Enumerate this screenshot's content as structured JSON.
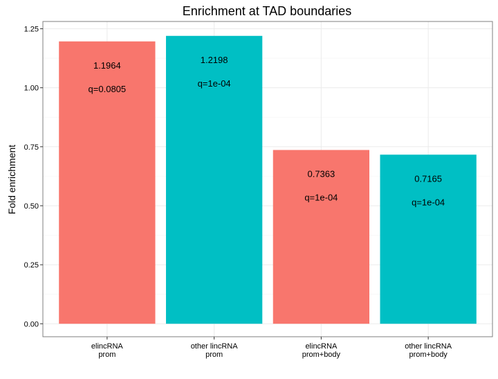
{
  "chart_data": {
    "type": "bar",
    "title": "Enrichment at TAD boundaries",
    "xlabel": "",
    "ylabel": "Fold enrichment",
    "ylim": [
      -0.055,
      1.2808
    ],
    "yticks": [
      "0.00",
      "0.25",
      "0.50",
      "0.75",
      "1.00",
      "1.25"
    ],
    "ytick_values": [
      0,
      0.25,
      0.5,
      0.75,
      1.0,
      1.25
    ],
    "grid": true,
    "legend": "none",
    "categories": [
      [
        "elincRNA",
        "prom"
      ],
      [
        "other lincRNA",
        "prom"
      ],
      [
        "elincRNA",
        "prom+body"
      ],
      [
        "other lincRNA",
        "prom+body"
      ]
    ],
    "values": [
      1.1964,
      1.2198,
      0.7363,
      0.7165
    ],
    "value_labels": [
      "1.1964",
      "1.2198",
      "0.7363",
      "0.7165"
    ],
    "q_labels": [
      "q=0.0805",
      "q=1e-04",
      "q=1e-04",
      "q=1e-04"
    ],
    "colors": [
      "#F8766D",
      "#00BFC4",
      "#F8766D",
      "#00BFC4"
    ]
  }
}
